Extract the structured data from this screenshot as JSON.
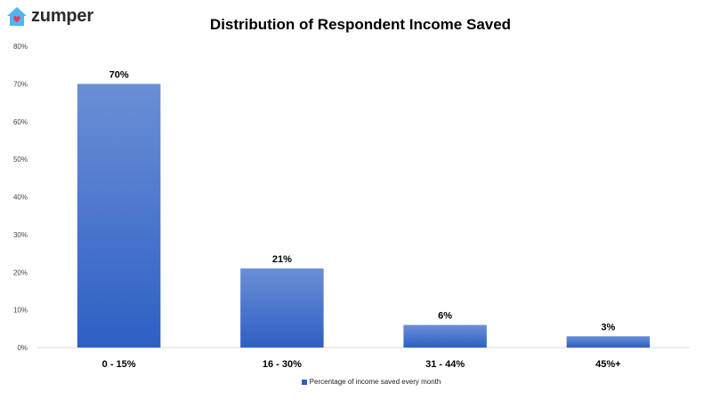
{
  "logo": {
    "text": "zumper",
    "icon": "house-icon",
    "icon_color": "#4fb6f0",
    "heart_color": "#e8395b"
  },
  "chart_data": {
    "type": "bar",
    "title": "Distribution of Respondent Income Saved",
    "categories": [
      "0 - 15%",
      "16 - 30%",
      "31 - 44%",
      "45%+"
    ],
    "series": [
      {
        "name": "Percentage of income saved every month",
        "values": [
          70,
          21,
          6,
          3
        ],
        "labels": [
          "70%",
          "21%",
          "6%",
          "3%"
        ]
      }
    ],
    "ylim": [
      0,
      80
    ],
    "yticks": [
      0,
      10,
      20,
      30,
      40,
      50,
      60,
      70,
      80
    ],
    "ytick_labels": [
      "0%",
      "10%",
      "20%",
      "30%",
      "40%",
      "50%",
      "60%",
      "70%",
      "80%"
    ],
    "xlabel": "",
    "ylabel": "",
    "grid": false,
    "legend_position": "bottom",
    "bar_color_top": "#6b8fd6",
    "bar_color_bottom": "#2e5fc4"
  }
}
